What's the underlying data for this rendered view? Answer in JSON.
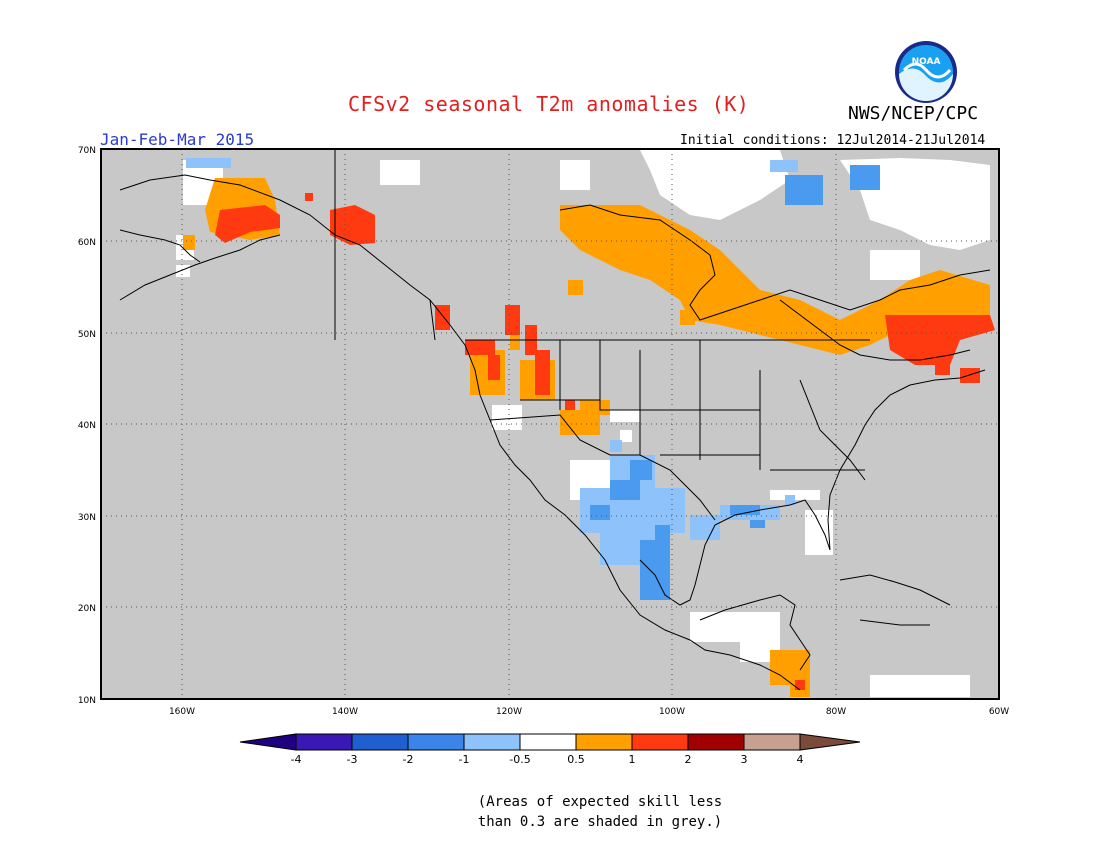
{
  "header": {
    "title": "CFSv2 seasonal T2m anomalies (K)",
    "agency": "NWS/NCEP/CPC",
    "logo_text": "NOAA",
    "period": "Jan-Feb-Mar 2015",
    "initial_conditions": "Initial conditions: 12Jul2014-21Jul2014"
  },
  "map": {
    "lat_labels": [
      "70N",
      "60N",
      "50N",
      "40N",
      "30N",
      "20N",
      "10N"
    ],
    "lon_labels": [
      "160W",
      "140W",
      "120W",
      "100W",
      "80W",
      "60W"
    ],
    "background_color": "#c8c8c8",
    "land_outline_color": "#000000"
  },
  "colorbar": {
    "tick_labels": [
      "-4",
      "-3",
      "-2",
      "-1",
      "-0.5",
      "0.5",
      "1",
      "2",
      "3",
      "4"
    ],
    "colors": [
      "#3a18b4",
      "#4a4ad0",
      "#2c6fdc",
      "#4a9af0",
      "#8ec2fa",
      "#ffffff",
      "#ffa000",
      "#ff4010",
      "#a00000",
      "#c8a090",
      "#7a4a3a",
      "#200080"
    ]
  },
  "note": {
    "line1": "(Areas of expected skill less",
    "line2": "than 0.3 are shaded in grey.)"
  },
  "anomaly_colors": {
    "orange": "#ffa000",
    "red": "#ff3a10",
    "light_blue": "#8ec2fa",
    "blue": "#4a9af0",
    "white": "#ffffff"
  }
}
